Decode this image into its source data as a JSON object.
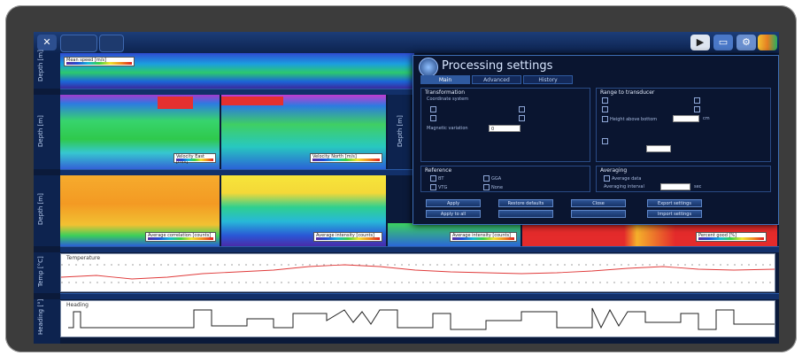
{
  "dialog": {
    "title": "Processing settings",
    "tabs": [
      "Main",
      "Advanced",
      "History"
    ],
    "transformation": {
      "title": "Transformation",
      "system_label": "Coordinate system",
      "rotation_label": "Magnetic variation",
      "rotation_value": "0"
    },
    "range": {
      "title": "Range to transducer",
      "height_label": "Height above bottom",
      "unit": "cm"
    },
    "reference": {
      "title": "Reference",
      "options": [
        "BT",
        "GGA",
        "VTG",
        "None"
      ]
    },
    "averaging": {
      "title": "Averaging",
      "check_label": "Average data",
      "interval_label": "Averaging interval",
      "interval_unit": "sec"
    },
    "buttons": [
      "Apply",
      "Restore defaults",
      "Close",
      "Export settings",
      "Apply to all",
      "Import settings"
    ]
  },
  "panels": {
    "legend_top": "Mean speed [m/s]",
    "legend_mid_left": "Velocity East [m/s]",
    "legend_mid_right": "Velocity North [m/s]",
    "legend_bot_left": "Average correlation [counts]",
    "legend_bot_right": "Average intensity [counts]",
    "legend_small_1": "Average intensity [counts]",
    "legend_small_2": "Percent good [%]",
    "temp_title": "Temperature",
    "heading_title": "Heading"
  },
  "axes": {
    "depth_label": "Depth [m]",
    "temp_label": "Temp [°C]",
    "heading_label": "Heading [°]"
  },
  "colors": {
    "screen": "#0b1a3a",
    "accent": "#2f5aa0",
    "temp_line": "#e03a3a"
  }
}
